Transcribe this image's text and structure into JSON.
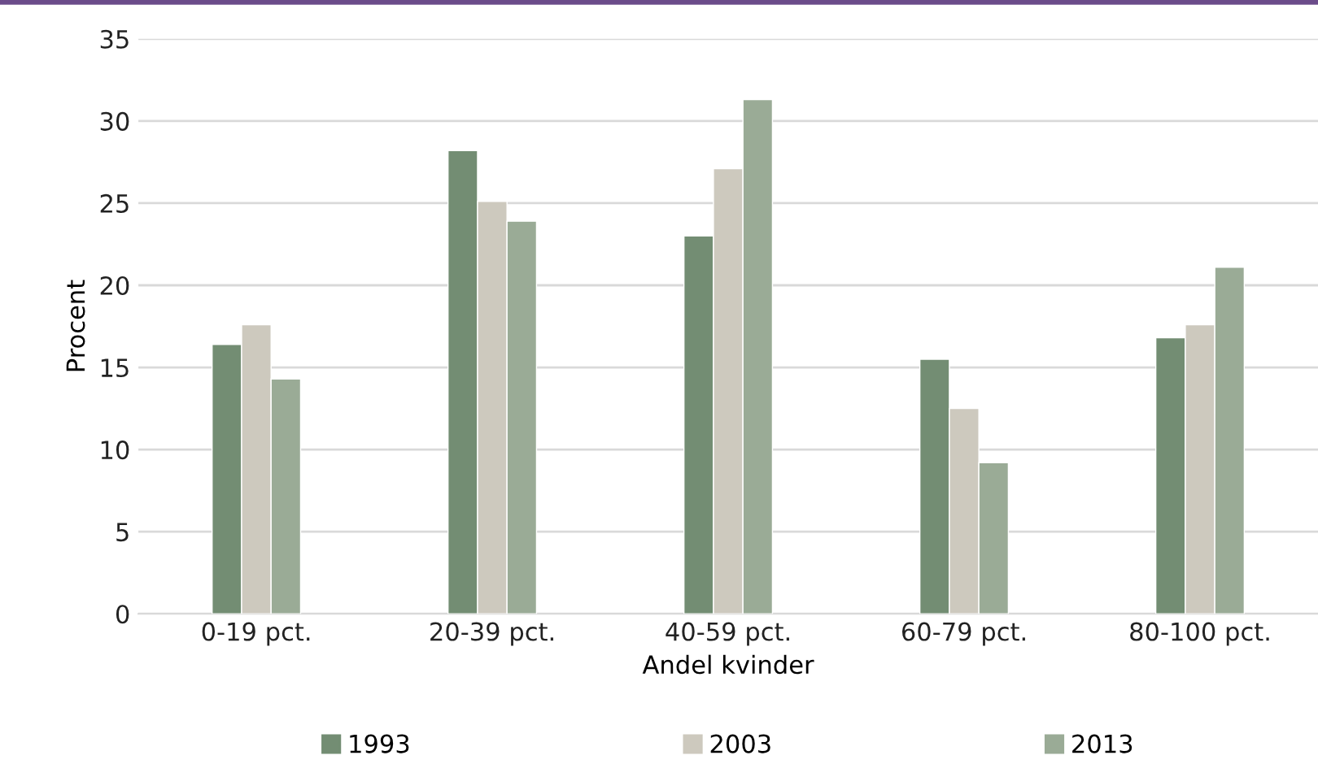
{
  "chart_data": {
    "type": "bar",
    "xlabel": "Andel kvinder",
    "ylabel": "Procent",
    "categories": [
      "0-19 pct.",
      "20-39 pct.",
      "40-59 pct.",
      "60-79 pct.",
      "80-100 pct."
    ],
    "series": [
      {
        "name": "1993",
        "color": "#738d73",
        "values": [
          16.4,
          28.2,
          23.0,
          15.5,
          16.8
        ]
      },
      {
        "name": "2003",
        "color": "#cdc9be",
        "values": [
          17.6,
          25.1,
          27.1,
          12.5,
          17.6
        ]
      },
      {
        "name": "2013",
        "color": "#9aab96",
        "values": [
          14.3,
          23.9,
          31.3,
          9.2,
          21.1
        ]
      }
    ],
    "ylim": [
      0,
      35
    ],
    "yticks": [
      0,
      5,
      10,
      15,
      20,
      25,
      30,
      35
    ],
    "grid": "y",
    "legend": "bottom"
  }
}
